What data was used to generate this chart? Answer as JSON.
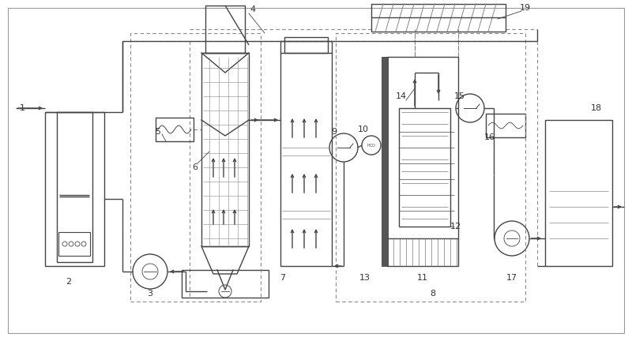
{
  "bg_color": "#ffffff",
  "line_color": "#444444",
  "dashed_color": "#888888",
  "label_color": "#333333",
  "fig_width": 8.0,
  "fig_height": 4.32
}
